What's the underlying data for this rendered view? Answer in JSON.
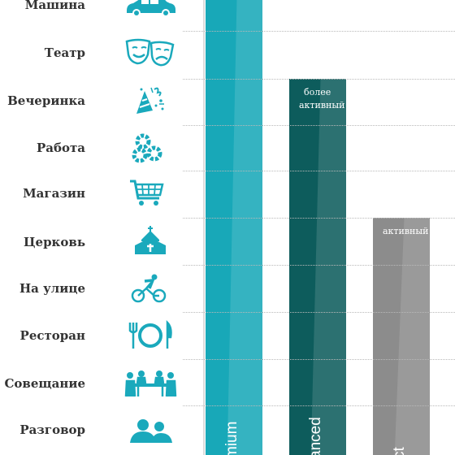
{
  "rows": [
    {
      "label": "Машина",
      "icon": "car-icon"
    },
    {
      "label": "Театр",
      "icon": "theater-masks-icon"
    },
    {
      "label": "Вечеринка",
      "icon": "party-hat-icon"
    },
    {
      "label": "Работа",
      "icon": "gears-icon"
    },
    {
      "label": "Магазин",
      "icon": "shopping-cart-icon"
    },
    {
      "label": "Церковь",
      "icon": "church-icon"
    },
    {
      "label": "На улице",
      "icon": "cyclist-icon"
    },
    {
      "label": "Ресторан",
      "icon": "restaurant-plate-icon"
    },
    {
      "label": "Совещание",
      "icon": "meeting-table-icon"
    },
    {
      "label": "Разговор",
      "icon": "conversation-icon"
    }
  ],
  "colors": {
    "label": "#333333",
    "icon": "#1aa9bc",
    "premium": "#18a8b8",
    "advanced": "#0d5c5c",
    "select": "#8c8c8c"
  },
  "chart_data": {
    "type": "bar",
    "categories": [
      "Машина",
      "Театр",
      "Вечеринка",
      "Работа",
      "Магазин",
      "Церковь",
      "На улице",
      "Ресторан",
      "Совещание",
      "Разговор"
    ],
    "series": [
      {
        "name": "mium",
        "color": "#18a8b8",
        "top_category": "Машина",
        "label": ""
      },
      {
        "name": "anced",
        "color": "#0d5c5c",
        "top_category": "Вечеринка",
        "label_line1": "более",
        "label_line2": "активный"
      },
      {
        "name": "ct",
        "color": "#8c8c8c",
        "top_category": "Церковь",
        "label": "активный"
      }
    ]
  }
}
